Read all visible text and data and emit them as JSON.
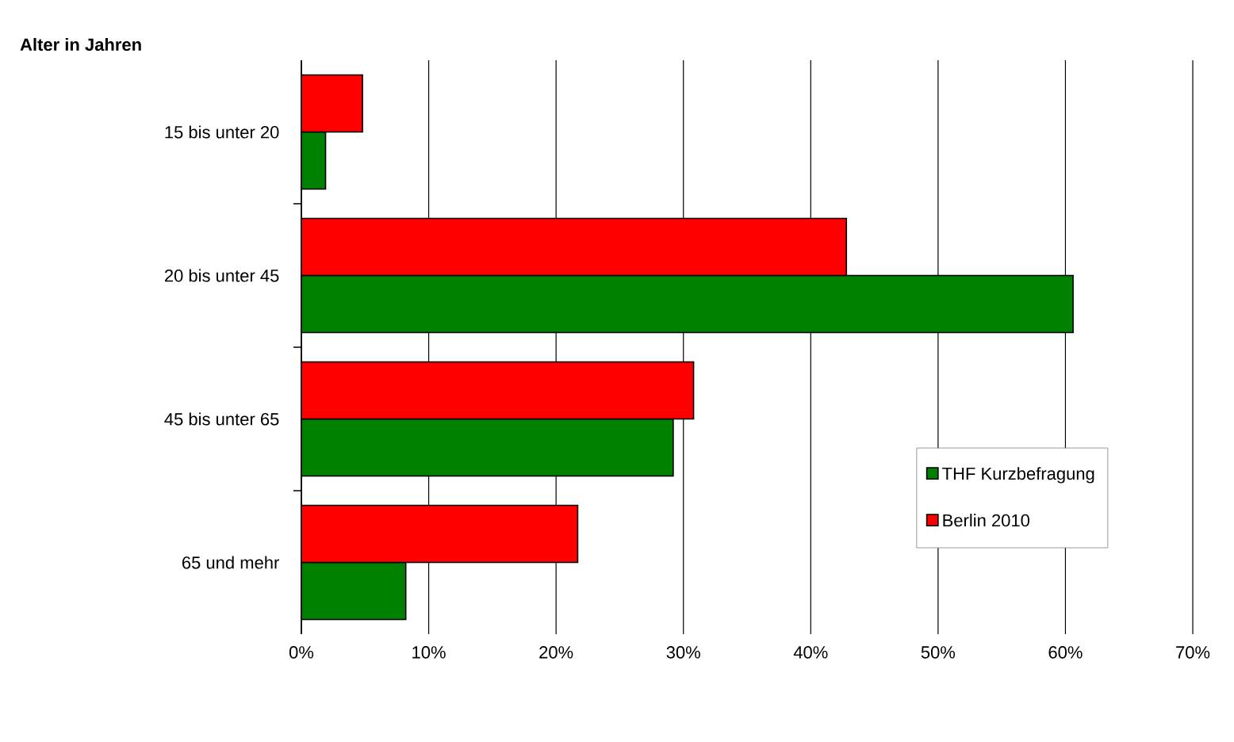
{
  "chart_data": {
    "type": "bar",
    "orientation": "horizontal",
    "ylabel": "Alter in Jahren",
    "categories": [
      "15 bis unter 20",
      "20 bis unter 45",
      "45 bis unter 65",
      "65 und mehr"
    ],
    "series": [
      {
        "name": "THF Kurzbefragung",
        "color": "#008000",
        "values": [
          1.9,
          60.6,
          29.2,
          8.2
        ]
      },
      {
        "name": "Berlin 2010",
        "color": "#ff0000",
        "values": [
          4.8,
          42.8,
          30.8,
          21.7
        ]
      }
    ],
    "xlim": [
      0,
      70
    ],
    "xticks": [
      {
        "value": 0,
        "label": "0%"
      },
      {
        "value": 10,
        "label": "10%"
      },
      {
        "value": 20,
        "label": "20%"
      },
      {
        "value": 30,
        "label": "30%"
      },
      {
        "value": 40,
        "label": "40%"
      },
      {
        "value": 50,
        "label": "50%"
      },
      {
        "value": 60,
        "label": "60%"
      },
      {
        "value": 70,
        "label": "70%"
      }
    ],
    "grid": "x",
    "legend": "right"
  }
}
